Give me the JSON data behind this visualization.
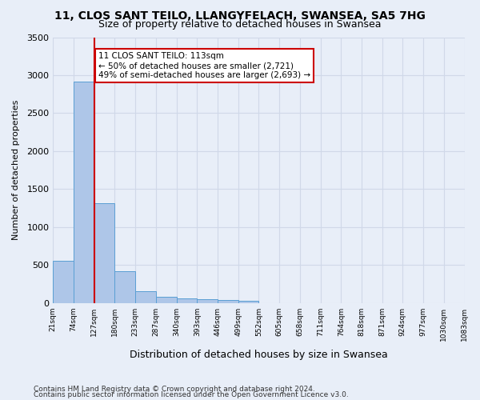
{
  "title1": "11, CLOS SANT TEILO, LLANGYFELACH, SWANSEA, SA5 7HG",
  "title2": "Size of property relative to detached houses in Swansea",
  "xlabel": "Distribution of detached houses by size in Swansea",
  "ylabel": "Number of detached properties",
  "footer1": "Contains HM Land Registry data © Crown copyright and database right 2024.",
  "footer2": "Contains public sector information licensed under the Open Government Licence v3.0.",
  "bin_labels": [
    "21sqm",
    "74sqm",
    "127sqm",
    "180sqm",
    "233sqm",
    "287sqm",
    "340sqm",
    "393sqm",
    "446sqm",
    "499sqm",
    "552sqm",
    "605sqm",
    "658sqm",
    "711sqm",
    "764sqm",
    "818sqm",
    "871sqm",
    "924sqm",
    "977sqm",
    "1030sqm",
    "1083sqm"
  ],
  "bar_values": [
    560,
    2920,
    1310,
    415,
    155,
    85,
    60,
    50,
    45,
    35,
    0,
    0,
    0,
    0,
    0,
    0,
    0,
    0,
    0,
    0
  ],
  "bar_color": "#aec6e8",
  "bar_edge_color": "#5a9fd4",
  "grid_color": "#d0d8e8",
  "vline_x": 2,
  "vline_color": "#cc0000",
  "annotation_text": "11 CLOS SANT TEILO: 113sqm\n← 50% of detached houses are smaller (2,721)\n49% of semi-detached houses are larger (2,693) →",
  "annotation_box_color": "#ffffff",
  "annotation_box_edge": "#cc0000",
  "ylim": [
    0,
    3500
  ],
  "yticks": [
    0,
    500,
    1000,
    1500,
    2000,
    2500,
    3000,
    3500
  ],
  "background_color": "#e8eef8"
}
